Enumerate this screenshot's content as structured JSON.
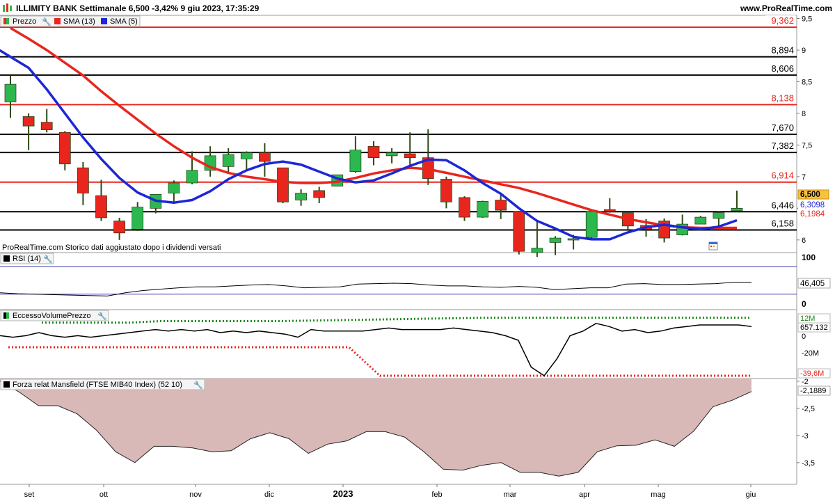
{
  "header": {
    "title": "ILLIMITY BANK Settimanale 6,500 -3,42% 9 giu 2023, 17:35:29",
    "site": "www.ProRealTime.com"
  },
  "footnote": "ProRealTime.com  Storico dati aggiustato dopo i dividendi versati",
  "colors": {
    "up_candle": "#2db84f",
    "down_candle": "#e8261d",
    "sma13": "#e8261d",
    "sma5": "#1d27d6",
    "resistance": "#e8261d",
    "support": "#000000",
    "rsi_band": "#3a3aa8",
    "mansfield_fill": "#d9b9b8"
  },
  "chart_data": [
    {
      "type": "candlestick",
      "legend": [
        "Prezzo",
        "SMA (13)",
        "SMA (5)"
      ],
      "ylim": [
        5.8,
        9.55
      ],
      "y_ticks": [
        "9,5",
        "9",
        "8,5",
        "8",
        "7,5",
        "7",
        "6,5",
        "6"
      ],
      "x_ticks": [
        "set",
        "ott",
        "nov",
        "dic",
        "2023",
        "feb",
        "mar",
        "apr",
        "mag",
        "giu"
      ],
      "candles": [
        {
          "o": 8.18,
          "h": 8.6,
          "l": 7.93,
          "c": 8.46
        },
        {
          "o": 7.95,
          "h": 8.0,
          "l": 7.42,
          "c": 7.8
        },
        {
          "o": 7.86,
          "h": 8.07,
          "l": 7.7,
          "c": 7.74
        },
        {
          "o": 7.7,
          "h": 7.72,
          "l": 7.1,
          "c": 7.2
        },
        {
          "o": 7.14,
          "h": 7.23,
          "l": 6.55,
          "c": 6.74
        },
        {
          "o": 6.7,
          "h": 6.95,
          "l": 6.3,
          "c": 6.35
        },
        {
          "o": 6.3,
          "h": 6.35,
          "l": 6.0,
          "c": 6.11
        },
        {
          "o": 6.17,
          "h": 6.6,
          "l": 6.14,
          "c": 6.52
        },
        {
          "o": 6.5,
          "h": 6.7,
          "l": 6.42,
          "c": 6.72
        },
        {
          "o": 6.74,
          "h": 6.94,
          "l": 6.57,
          "c": 6.9
        },
        {
          "o": 6.9,
          "h": 7.4,
          "l": 6.88,
          "c": 7.1
        },
        {
          "o": 7.1,
          "h": 7.48,
          "l": 7.0,
          "c": 7.33
        },
        {
          "o": 7.16,
          "h": 7.45,
          "l": 7.06,
          "c": 7.35
        },
        {
          "o": 7.28,
          "h": 7.4,
          "l": 7.12,
          "c": 7.38
        },
        {
          "o": 7.38,
          "h": 7.53,
          "l": 7.0,
          "c": 7.24
        },
        {
          "o": 7.14,
          "h": 7.14,
          "l": 6.58,
          "c": 6.6
        },
        {
          "o": 6.63,
          "h": 6.8,
          "l": 6.54,
          "c": 6.74
        },
        {
          "o": 6.78,
          "h": 6.84,
          "l": 6.58,
          "c": 6.67
        },
        {
          "o": 6.85,
          "h": 7.03,
          "l": 6.85,
          "c": 7.03
        },
        {
          "o": 7.08,
          "h": 7.64,
          "l": 7.06,
          "c": 7.42
        },
        {
          "o": 7.48,
          "h": 7.56,
          "l": 7.18,
          "c": 7.3
        },
        {
          "o": 7.33,
          "h": 7.45,
          "l": 7.21,
          "c": 7.38
        },
        {
          "o": 7.36,
          "h": 7.7,
          "l": 7.14,
          "c": 7.3
        },
        {
          "o": 7.3,
          "h": 7.75,
          "l": 6.87,
          "c": 6.97
        },
        {
          "o": 6.96,
          "h": 7.0,
          "l": 6.5,
          "c": 6.6
        },
        {
          "o": 6.67,
          "h": 6.69,
          "l": 6.3,
          "c": 6.36
        },
        {
          "o": 6.36,
          "h": 6.62,
          "l": 6.35,
          "c": 6.61
        },
        {
          "o": 6.63,
          "h": 6.72,
          "l": 6.33,
          "c": 6.47
        },
        {
          "o": 6.45,
          "h": 6.46,
          "l": 5.77,
          "c": 5.82
        },
        {
          "o": 5.8,
          "h": 6.3,
          "l": 5.73,
          "c": 5.87
        },
        {
          "o": 5.96,
          "h": 6.06,
          "l": 5.76,
          "c": 6.03
        },
        {
          "o": 6.0,
          "h": 6.08,
          "l": 5.85,
          "c": 6.02
        },
        {
          "o": 6.04,
          "h": 6.47,
          "l": 6.02,
          "c": 6.45
        },
        {
          "o": 6.48,
          "h": 6.66,
          "l": 6.43,
          "c": 6.45
        },
        {
          "o": 6.43,
          "h": 6.46,
          "l": 6.17,
          "c": 6.22
        },
        {
          "o": 6.23,
          "h": 6.33,
          "l": 6.05,
          "c": 6.17
        },
        {
          "o": 6.3,
          "h": 6.34,
          "l": 5.96,
          "c": 6.03
        },
        {
          "o": 6.08,
          "h": 6.4,
          "l": 6.07,
          "c": 6.25
        },
        {
          "o": 6.25,
          "h": 6.38,
          "l": 6.25,
          "c": 6.36
        },
        {
          "o": 6.34,
          "h": 6.46,
          "l": 6.18,
          "c": 6.43
        },
        {
          "o": 6.46,
          "h": 6.78,
          "l": 6.45,
          "c": 6.5
        }
      ],
      "sma13": [
        9.35,
        9.18,
        9.0,
        8.8,
        8.6,
        8.35,
        8.12,
        7.9,
        7.68,
        7.48,
        7.3,
        7.15,
        7.06,
        7.0,
        6.96,
        6.92,
        6.9,
        6.9,
        6.92,
        6.98,
        7.05,
        7.1,
        7.14,
        7.12,
        7.06,
        7.0,
        6.94,
        6.88,
        6.82,
        6.74,
        6.65,
        6.56,
        6.47,
        6.4,
        6.33,
        6.28,
        6.23,
        6.2,
        6.19,
        6.19,
        6.19
      ],
      "sma5": [
        9.0,
        8.72,
        8.38,
        8.0,
        7.62,
        7.28,
        6.98,
        6.75,
        6.62,
        6.59,
        6.63,
        6.77,
        6.96,
        7.1,
        7.2,
        7.24,
        7.19,
        7.08,
        6.97,
        6.91,
        6.94,
        7.05,
        7.17,
        7.27,
        7.26,
        7.1,
        6.9,
        6.73,
        6.5,
        6.3,
        6.18,
        6.05,
        6.01,
        6.01,
        6.12,
        6.2,
        6.24,
        6.2,
        6.17,
        6.21,
        6.31
      ],
      "horizontal_levels": [
        {
          "value": 9.362,
          "label": "9,362",
          "kind": "resistance"
        },
        {
          "value": 8.894,
          "label": "8,894",
          "kind": "support"
        },
        {
          "value": 8.606,
          "label": "8,606",
          "kind": "support"
        },
        {
          "value": 8.138,
          "label": "8,138",
          "kind": "resistance"
        },
        {
          "value": 7.67,
          "label": "7,670",
          "kind": "support"
        },
        {
          "value": 7.382,
          "label": "7,382",
          "kind": "support"
        },
        {
          "value": 6.914,
          "label": "6,914",
          "kind": "resistance"
        },
        {
          "value": 6.446,
          "label": "6,446",
          "kind": "support"
        },
        {
          "value": 6.158,
          "label": "6,158",
          "kind": "support"
        }
      ],
      "value_tags": [
        {
          "value": 6.5,
          "label": "6,500",
          "kind": "price"
        },
        {
          "value": 6.3098,
          "label": "6,3098",
          "kind": "sma5"
        },
        {
          "value": 6.1984,
          "label": "6,1984",
          "kind": "sma13"
        }
      ]
    },
    {
      "type": "line",
      "name": "RSI (14)",
      "ylim": [
        0,
        100
      ],
      "y_ticks": [
        "100",
        "0"
      ],
      "bands": [
        80,
        20
      ],
      "values": [
        23,
        21,
        20,
        19,
        18,
        17,
        16,
        23,
        28,
        31,
        34,
        36,
        36,
        38,
        40,
        41,
        38,
        34,
        35,
        36,
        42,
        43,
        44,
        43,
        40,
        38,
        38,
        36,
        35,
        37,
        35,
        30,
        32,
        34,
        34,
        42,
        43,
        41,
        41,
        42,
        43,
        46,
        46
      ],
      "last_label": "46,405"
    },
    {
      "type": "line",
      "name": "EccessoVolumePrezzo",
      "y_ticks": [
        "0",
        "-20M"
      ],
      "tags": [
        "12M",
        "657.132",
        "-39,6M"
      ],
      "main": [
        -2,
        -3,
        -2,
        0,
        -2,
        -3,
        -2,
        -3,
        -2,
        -1,
        0,
        1,
        2,
        1,
        2,
        1,
        2,
        0,
        1,
        0,
        1,
        0,
        -1,
        -3,
        2,
        1,
        1,
        1,
        1,
        2,
        3,
        2,
        2,
        2,
        2,
        3,
        2,
        1,
        0,
        -2,
        -5,
        -8,
        -10,
        -6,
        -2,
        1,
        6,
        4,
        1,
        2,
        0,
        1,
        3,
        4,
        5,
        5,
        5,
        5,
        4
      ],
      "upper_dotted": [
        2,
        2,
        2,
        2,
        5,
        5,
        5,
        5,
        5,
        6,
        7,
        8,
        9,
        10,
        11,
        12,
        12,
        12,
        12,
        12,
        12,
        12,
        12,
        12,
        12
      ],
      "lower_dotted": [
        -10,
        -10,
        -10,
        -10,
        -10,
        -10,
        -10,
        -10,
        -10,
        -10,
        -10,
        -10,
        -39.6,
        -39.6,
        -39.6,
        -39.6,
        -39.6,
        -39.6,
        -39.6,
        -39.6,
        -39.6,
        -39.6,
        -39.6,
        -39.6,
        -39.6
      ]
    },
    {
      "type": "area",
      "name": "Forza relat Mansfield (FTSE MIB40 Index) (52 10)",
      "ylim": [
        -3.9,
        -1.95
      ],
      "y_ticks": [
        "-2",
        "-2,5",
        "-3",
        "-3,5"
      ],
      "values": [
        -2.0,
        -2.2,
        -2.45,
        -2.45,
        -2.6,
        -2.9,
        -3.3,
        -3.5,
        -3.2,
        -3.2,
        -3.23,
        -3.3,
        -3.28,
        -3.06,
        -2.95,
        -3.06,
        -3.33,
        -3.16,
        -3.1,
        -2.93,
        -2.93,
        -3.03,
        -3.3,
        -3.62,
        -3.64,
        -3.55,
        -3.5,
        -3.68,
        -3.68,
        -3.75,
        -3.68,
        -3.3,
        -3.19,
        -3.18,
        -3.08,
        -3.2,
        -2.92,
        -2.47,
        -2.35,
        -2.19
      ],
      "last_label": "-2,1889"
    }
  ]
}
